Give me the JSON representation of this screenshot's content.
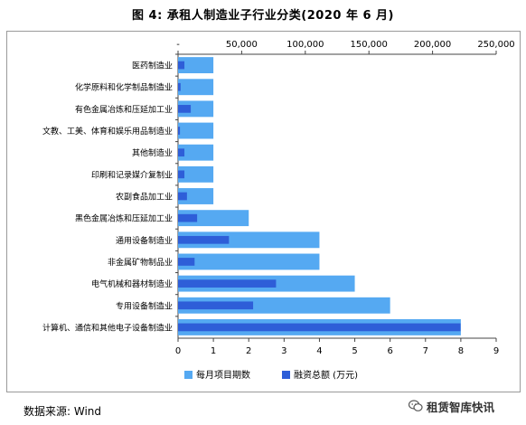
{
  "title": "图 4: 承租人制造业子行业分类(2020 年 6 月)",
  "source": "数据来源: Wind",
  "watermark": "租赁智库快讯",
  "chart_data": {
    "type": "bar",
    "orientation": "horizontal",
    "categories": [
      "医药制造业",
      "化学原料和化学制品制造业",
      "有色金属冶炼和压延加工业",
      "文教、工美、体育和娱乐用品制造业",
      "其他制造业",
      "印刷和记录媒介复制业",
      "农副食品加工业",
      "黑色金属冶炼和压延加工业",
      "通用设备制造业",
      "非金属矿物制品业",
      "电气机械和器材制造业",
      "专用设备制造业",
      "计算机、通信和其他电子设备制造业"
    ],
    "series": [
      {
        "name": "每月项目期数",
        "axis": "bottom",
        "color": "#55a9f2",
        "values": [
          1,
          1,
          1,
          1,
          1,
          1,
          1,
          2,
          4,
          4,
          5,
          6,
          8
        ]
      },
      {
        "name": "融资总额 (万元)",
        "axis": "top",
        "color": "#2e5ed8",
        "values": [
          5000,
          2000,
          10000,
          1500,
          5000,
          5000,
          7000,
          15000,
          40000,
          13000,
          77000,
          59000,
          222000
        ]
      }
    ],
    "bottom_axis": {
      "min": 0,
      "max": 9,
      "ticks": [
        "0",
        "1",
        "2",
        "3",
        "4",
        "5",
        "6",
        "7",
        "8",
        "9"
      ]
    },
    "top_axis": {
      "min": 0,
      "max": 250000,
      "ticks": [
        "-",
        "50,000",
        "100,000",
        "150,000",
        "200,000",
        "250,000"
      ]
    },
    "legend_position": "bottom",
    "grid": false
  }
}
